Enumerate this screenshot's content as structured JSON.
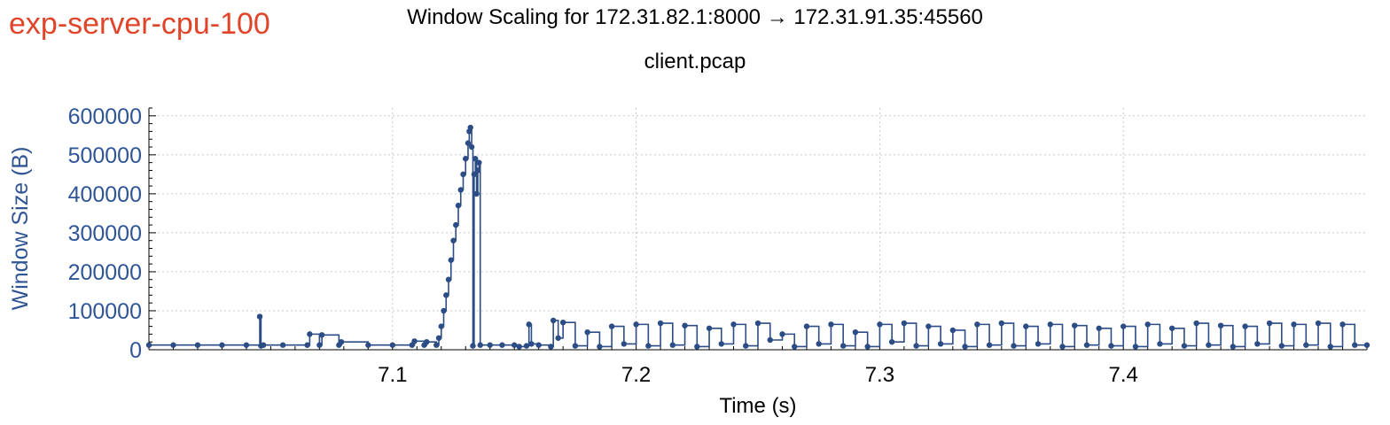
{
  "tag": "exp-server-cpu-100",
  "chart_data": {
    "type": "line",
    "title": "Window Scaling for 172.31.82.1:8000 → 172.31.91.35:45560",
    "subtitle": "client.pcap",
    "xlabel": "Time (s)",
    "ylabel": "Window Size (B)",
    "xlim": [
      7.0,
      7.5
    ],
    "ylim": [
      0,
      620000
    ],
    "xticks": [
      7.1,
      7.2,
      7.3,
      7.4
    ],
    "xtick_labels": [
      "7.1",
      "7.2",
      "7.3",
      "7.4"
    ],
    "yticks": [
      0,
      100000,
      200000,
      300000,
      400000,
      500000,
      600000
    ],
    "ytick_labels": [
      "0",
      "100000",
      "200000",
      "300000",
      "400000",
      "500000",
      "600000"
    ],
    "grid": true,
    "series": [
      {
        "name": "Window Size",
        "color": "#2b4c85",
        "x": [
          7.0,
          7.01,
          7.02,
          7.03,
          7.04,
          7.0455,
          7.046,
          7.047,
          7.055,
          7.065,
          7.066,
          7.07,
          7.071,
          7.078,
          7.079,
          7.09,
          7.1,
          7.108,
          7.109,
          7.113,
          7.114,
          7.118,
          7.119,
          7.12,
          7.121,
          7.122,
          7.123,
          7.124,
          7.125,
          7.126,
          7.127,
          7.128,
          7.129,
          7.13,
          7.131,
          7.1315,
          7.132,
          7.1325,
          7.133,
          7.1335,
          7.134,
          7.1345,
          7.135,
          7.1355,
          7.136,
          7.14,
          7.145,
          7.15,
          7.152,
          7.155,
          7.156,
          7.157,
          7.16,
          7.165,
          7.166,
          7.168,
          7.17,
          7.175,
          7.18,
          7.185,
          7.19,
          7.195,
          7.2,
          7.205,
          7.21,
          7.215,
          7.22,
          7.225,
          7.23,
          7.235,
          7.24,
          7.245,
          7.25,
          7.255,
          7.26,
          7.265,
          7.27,
          7.275,
          7.28,
          7.285,
          7.29,
          7.295,
          7.3,
          7.305,
          7.31,
          7.315,
          7.32,
          7.325,
          7.33,
          7.335,
          7.34,
          7.345,
          7.35,
          7.355,
          7.36,
          7.365,
          7.37,
          7.375,
          7.38,
          7.385,
          7.39,
          7.395,
          7.4,
          7.405,
          7.41,
          7.415,
          7.42,
          7.425,
          7.43,
          7.435,
          7.44,
          7.445,
          7.45,
          7.455,
          7.46,
          7.465,
          7.47,
          7.475,
          7.48,
          7.485,
          7.49,
          7.495,
          7.5
        ],
        "y": [
          12000,
          12000,
          12000,
          12000,
          12000,
          85000,
          10000,
          12000,
          12000,
          12000,
          40000,
          12000,
          38000,
          12000,
          20000,
          12000,
          12000,
          12000,
          22000,
          12000,
          20000,
          12000,
          30000,
          60000,
          100000,
          140000,
          180000,
          230000,
          280000,
          320000,
          370000,
          410000,
          450000,
          490000,
          530000,
          560000,
          570000,
          520000,
          10000,
          450000,
          490000,
          400000,
          460000,
          480000,
          12000,
          12000,
          12000,
          12000,
          8000,
          10000,
          65000,
          15000,
          12000,
          8000,
          75000,
          30000,
          70000,
          10000,
          45000,
          8000,
          60000,
          15000,
          65000,
          10000,
          68000,
          12000,
          62000,
          8000,
          55000,
          15000,
          65000,
          10000,
          68000,
          25000,
          40000,
          8000,
          60000,
          15000,
          65000,
          10000,
          45000,
          8000,
          65000,
          20000,
          68000,
          10000,
          60000,
          15000,
          50000,
          8000,
          65000,
          12000,
          68000,
          10000,
          60000,
          15000,
          65000,
          8000,
          62000,
          12000,
          55000,
          10000,
          60000,
          8000,
          65000,
          15000,
          55000,
          10000,
          68000,
          12000,
          62000,
          8000,
          60000,
          15000,
          68000,
          10000,
          65000,
          12000,
          68000,
          8000,
          65000,
          12000,
          12000
        ]
      }
    ]
  }
}
